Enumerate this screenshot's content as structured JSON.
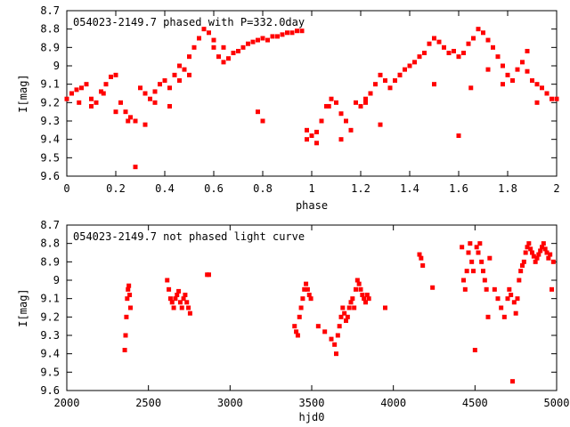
{
  "chart_data": [
    {
      "type": "scatter",
      "title": "054023-2149.7 phased with P=332.0day",
      "xlabel": "phase",
      "ylabel": "I[mag]",
      "xlim": [
        0,
        2
      ],
      "ylim": [
        9.6,
        8.7
      ],
      "y_inverted": true,
      "grid": false,
      "color": "#ff0000",
      "x_ticks": [
        "0",
        "0.2",
        "0.4",
        "0.6",
        "0.8",
        "1",
        "1.2",
        "1.4",
        "1.6",
        "1.8",
        "2"
      ],
      "y_ticks": [
        "8.7",
        "8.8",
        "8.9",
        "9",
        "9.1",
        "9.2",
        "9.3",
        "9.4",
        "9.5",
        "9.6"
      ],
      "series": [
        {
          "x": [
            0.0,
            0.02,
            0.04,
            0.06,
            0.08,
            0.1,
            0.12,
            0.14,
            0.16,
            0.18,
            0.2,
            0.22,
            0.24,
            0.26,
            0.28,
            0.3,
            0.32,
            0.34,
            0.36,
            0.38,
            0.4,
            0.42,
            0.44,
            0.46,
            0.48,
            0.5,
            0.52,
            0.54,
            0.56,
            0.58,
            0.6,
            0.62,
            0.64,
            0.66,
            0.68,
            0.7,
            0.72,
            0.74,
            0.76,
            0.78,
            0.8,
            0.82,
            0.84,
            0.86,
            0.88,
            0.9,
            0.92,
            0.94,
            0.96,
            0.98,
            1.0,
            1.02,
            1.04,
            1.06,
            1.08,
            1.1,
            1.12,
            1.14,
            1.16,
            1.18,
            1.2,
            1.22,
            1.24,
            1.26,
            1.28,
            1.3,
            1.32,
            1.34,
            1.36,
            1.38,
            1.4,
            1.42,
            1.44,
            1.46,
            1.48,
            1.5,
            1.52,
            1.54,
            1.56,
            1.58,
            1.6,
            1.62,
            1.64,
            1.66,
            1.68,
            1.7,
            1.72,
            1.74,
            1.76,
            1.78,
            1.8,
            1.82,
            1.84,
            1.86,
            1.88,
            1.9,
            1.92,
            1.94,
            1.96,
            1.98,
            2.0,
            0.05,
            0.1,
            0.15,
            0.2,
            0.25,
            0.28,
            0.32,
            0.36,
            0.42,
            0.46,
            0.5,
            0.6,
            0.64,
            0.78,
            0.8,
            0.98,
            1.02,
            1.07,
            1.12,
            1.22,
            1.28,
            1.36,
            1.5,
            1.6,
            1.65,
            1.72,
            1.78,
            1.82,
            1.88,
            1.92
          ],
          "y": [
            9.18,
            9.15,
            9.13,
            9.12,
            9.1,
            9.18,
            9.2,
            9.14,
            9.1,
            9.06,
            9.05,
            9.2,
            9.25,
            9.28,
            9.3,
            9.12,
            9.15,
            9.18,
            9.14,
            9.1,
            9.08,
            9.12,
            9.05,
            9.0,
            9.02,
            8.95,
            8.9,
            8.85,
            8.8,
            8.82,
            8.9,
            8.95,
            8.98,
            8.96,
            8.93,
            8.92,
            8.9,
            8.88,
            8.87,
            8.86,
            8.85,
            8.86,
            8.84,
            8.84,
            8.83,
            8.82,
            8.82,
            8.81,
            8.81,
            9.35,
            9.38,
            9.36,
            9.3,
            9.22,
            9.18,
            9.2,
            9.26,
            9.3,
            9.35,
            9.2,
            9.22,
            9.18,
            9.15,
            9.1,
            9.05,
            9.08,
            9.12,
            9.08,
            9.05,
            9.02,
            9.0,
            8.98,
            8.95,
            8.93,
            8.88,
            8.85,
            8.87,
            8.9,
            8.93,
            8.92,
            8.95,
            8.93,
            8.88,
            8.85,
            8.8,
            8.82,
            8.86,
            8.9,
            8.95,
            9.0,
            9.05,
            9.08,
            9.02,
            8.98,
            9.03,
            9.08,
            9.1,
            9.12,
            9.15,
            9.18,
            9.18,
            9.2,
            9.22,
            9.15,
            9.25,
            9.3,
            9.55,
            9.32,
            9.2,
            9.22,
            9.08,
            9.05,
            8.86,
            8.9,
            9.25,
            9.3,
            9.4,
            9.42,
            9.22,
            9.4,
            9.2,
            9.32,
            9.05,
            9.1,
            9.38,
            9.12,
            9.02,
            9.1,
            9.08,
            8.92,
            9.2
          ]
        }
      ]
    },
    {
      "type": "scatter",
      "title": "054023-2149.7 not phased light curve",
      "xlabel": "hjd0",
      "ylabel": "I[mag]",
      "xlim": [
        2000,
        5000
      ],
      "ylim": [
        9.6,
        8.7
      ],
      "y_inverted": true,
      "grid": false,
      "color": "#ff0000",
      "x_ticks": [
        "2000",
        "2500",
        "3000",
        "3500",
        "4000",
        "4500",
        "5000"
      ],
      "y_ticks": [
        "8.7",
        "8.8",
        "8.9",
        "9",
        "9.1",
        "9.2",
        "9.3",
        "9.4",
        "9.5",
        "9.6"
      ],
      "series": [
        {
          "x": [
            2355,
            2360,
            2365,
            2370,
            2375,
            2380,
            2385,
            2390,
            2615,
            2625,
            2635,
            2645,
            2655,
            2665,
            2675,
            2685,
            2695,
            2705,
            2715,
            2725,
            2735,
            2745,
            2755,
            2860,
            2870,
            3395,
            3405,
            3415,
            3425,
            3435,
            3445,
            3455,
            3465,
            3475,
            3485,
            3495,
            3540,
            3580,
            3620,
            3640,
            3650,
            3660,
            3670,
            3680,
            3690,
            3700,
            3710,
            3720,
            3730,
            3740,
            3750,
            3760,
            3770,
            3780,
            3790,
            3800,
            3810,
            3820,
            3830,
            3840,
            3850,
            3950,
            4160,
            4170,
            4180,
            4240,
            4420,
            4430,
            4440,
            4450,
            4460,
            4470,
            4480,
            4490,
            4500,
            4510,
            4520,
            4530,
            4540,
            4550,
            4560,
            4570,
            4580,
            4590,
            4620,
            4640,
            4660,
            4680,
            4700,
            4710,
            4720,
            4730,
            4740,
            4750,
            4760,
            4770,
            4780,
            4790,
            4800,
            4810,
            4820,
            4830,
            4840,
            4850,
            4860,
            4870,
            4880,
            4890,
            4900,
            4910,
            4920,
            4930,
            4940,
            4950,
            4960,
            4970,
            4980
          ],
          "y": [
            9.38,
            9.3,
            9.2,
            9.1,
            9.05,
            9.03,
            9.08,
            9.15,
            9.0,
            9.05,
            9.1,
            9.12,
            9.15,
            9.1,
            9.08,
            9.06,
            9.12,
            9.15,
            9.1,
            9.08,
            9.12,
            9.15,
            9.18,
            8.97,
            8.97,
            9.25,
            9.28,
            9.3,
            9.2,
            9.15,
            9.1,
            9.05,
            9.02,
            9.05,
            9.08,
            9.1,
            9.25,
            9.28,
            9.32,
            9.35,
            9.4,
            9.3,
            9.25,
            9.2,
            9.15,
            9.18,
            9.22,
            9.2,
            9.15,
            9.12,
            9.1,
            9.15,
            9.05,
            9.0,
            9.02,
            9.05,
            9.08,
            9.1,
            9.12,
            9.08,
            9.1,
            9.15,
            8.86,
            8.88,
            8.92,
            9.04,
            8.82,
            9.0,
            9.05,
            8.95,
            8.85,
            8.8,
            8.9,
            8.95,
            9.38,
            8.82,
            8.85,
            8.8,
            8.9,
            8.95,
            9.0,
            9.05,
            9.2,
            8.88,
            9.05,
            9.1,
            9.15,
            9.2,
            9.1,
            9.05,
            9.08,
            9.55,
            9.12,
            9.18,
            9.1,
            9.0,
            8.95,
            8.92,
            8.9,
            8.85,
            8.82,
            8.8,
            8.83,
            8.85,
            8.87,
            8.9,
            8.88,
            8.86,
            8.84,
            8.82,
            8.8,
            8.83,
            8.85,
            8.88,
            8.86,
            9.05,
            8.9
          ]
        }
      ]
    }
  ]
}
